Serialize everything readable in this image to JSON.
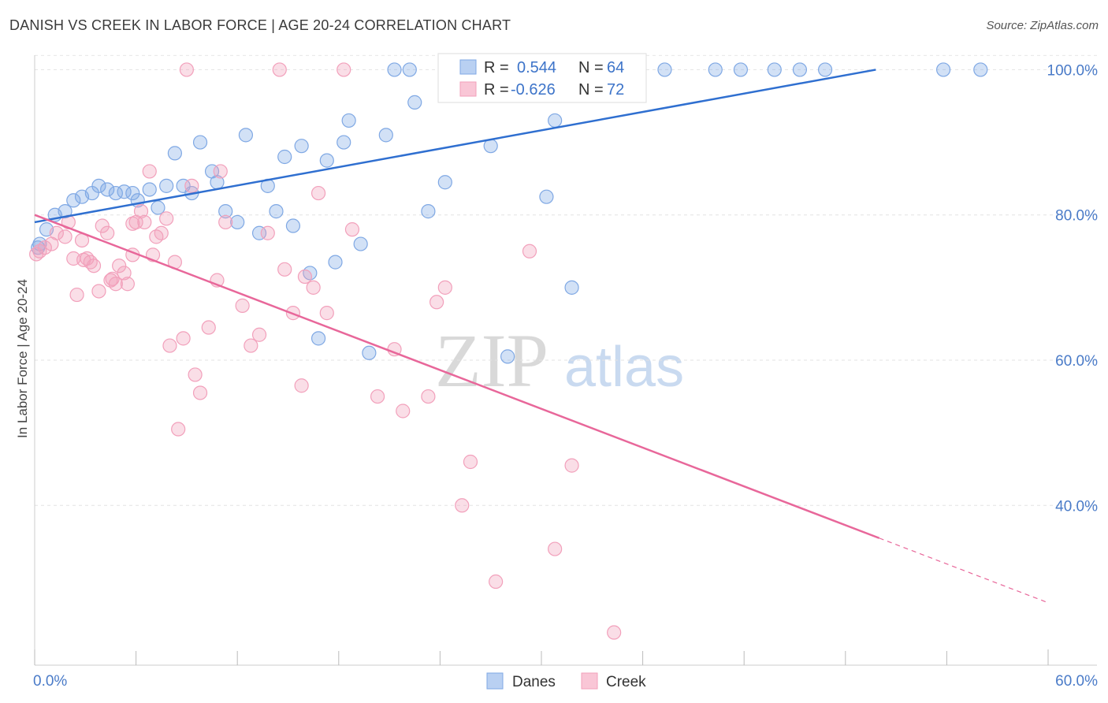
{
  "title": "DANISH VS CREEK IN LABOR FORCE | AGE 20-24 CORRELATION CHART",
  "source": "Source: ZipAtlas.com",
  "watermark": {
    "zip": "ZIP",
    "atlas": "atlas"
  },
  "colors": {
    "danes": "#7fa8e4",
    "creek": "#f2a0bb",
    "danes_line": "#2f6fd0",
    "creek_line": "#e8679a",
    "axis_text": "#4a7bc8"
  },
  "legend": {
    "r_label": "R =",
    "n_label": "N =",
    "danes": {
      "r": "0.544",
      "n": "64"
    },
    "creek": {
      "r": "-0.626",
      "n": "72"
    }
  },
  "bottom_legend": {
    "danes": "Danes",
    "creek": "Creek"
  },
  "chart_data": {
    "type": "scatter",
    "title": "DANISH VS CREEK IN LABOR FORCE | AGE 20-24 CORRELATION CHART",
    "xlabel": "",
    "ylabel": "In Labor Force | Age 20-24",
    "xlim": [
      0,
      60
    ],
    "ylim": [
      18,
      102
    ],
    "x_tick_labels": [
      "0.0%",
      "60.0%"
    ],
    "y_ticks": [
      40,
      60,
      80,
      100
    ],
    "y_tick_labels": [
      "40.0%",
      "60.0%",
      "80.0%",
      "100.0%"
    ],
    "grid": true,
    "legend_position": "top-center",
    "series": [
      {
        "name": "Danes",
        "color": "#7fa8e4",
        "points": [
          [
            0.2,
            75.5
          ],
          [
            0.7,
            78
          ],
          [
            1.2,
            80
          ],
          [
            1.8,
            80.5
          ],
          [
            2.3,
            82
          ],
          [
            2.8,
            82.5
          ],
          [
            3.4,
            83
          ],
          [
            3.8,
            84
          ],
          [
            4.3,
            83.5
          ],
          [
            4.8,
            83
          ],
          [
            5.3,
            83.2
          ],
          [
            5.8,
            83
          ],
          [
            6.1,
            82
          ],
          [
            6.8,
            83.5
          ],
          [
            7.3,
            81
          ],
          [
            7.8,
            84
          ],
          [
            8.3,
            88.5
          ],
          [
            8.8,
            84
          ],
          [
            9.3,
            83
          ],
          [
            9.8,
            90
          ],
          [
            10.5,
            86
          ],
          [
            10.8,
            84.5
          ],
          [
            11.3,
            80.5
          ],
          [
            12.0,
            79
          ],
          [
            12.5,
            91
          ],
          [
            13.3,
            77.5
          ],
          [
            13.8,
            84
          ],
          [
            14.3,
            80.5
          ],
          [
            14.8,
            88
          ],
          [
            15.3,
            78.5
          ],
          [
            15.8,
            89.5
          ],
          [
            16.3,
            72
          ],
          [
            16.8,
            63
          ],
          [
            17.3,
            87.5
          ],
          [
            17.8,
            73.5
          ],
          [
            18.3,
            90
          ],
          [
            18.6,
            93
          ],
          [
            19.3,
            76
          ],
          [
            19.8,
            61
          ],
          [
            20.8,
            91
          ],
          [
            21.3,
            100
          ],
          [
            22.2,
            100
          ],
          [
            22.5,
            95.5
          ],
          [
            23.3,
            80.5
          ],
          [
            24.3,
            84.5
          ],
          [
            25.5,
            100
          ],
          [
            27.0,
            89.5
          ],
          [
            28.0,
            60.5
          ],
          [
            28.3,
            100
          ],
          [
            29.3,
            100
          ],
          [
            30.3,
            82.5
          ],
          [
            30.8,
            93
          ],
          [
            31.8,
            70
          ],
          [
            33.3,
            100
          ],
          [
            35.3,
            100
          ],
          [
            37.3,
            100
          ],
          [
            40.3,
            100
          ],
          [
            41.8,
            100
          ],
          [
            43.8,
            100
          ],
          [
            45.3,
            100
          ],
          [
            46.8,
            100
          ],
          [
            53.8,
            100
          ],
          [
            56.0,
            100
          ],
          [
            0.3,
            76
          ]
        ]
      },
      {
        "name": "Creek",
        "color": "#f2a0bb",
        "points": [
          [
            0.3,
            75
          ],
          [
            0.6,
            75.5
          ],
          [
            1.0,
            76
          ],
          [
            1.3,
            77.5
          ],
          [
            1.8,
            77
          ],
          [
            2.0,
            79
          ],
          [
            2.3,
            74
          ],
          [
            2.5,
            69
          ],
          [
            2.8,
            76.5
          ],
          [
            3.1,
            74
          ],
          [
            3.3,
            73.5
          ],
          [
            3.5,
            73
          ],
          [
            3.8,
            69.5
          ],
          [
            4.0,
            78.5
          ],
          [
            4.3,
            77.5
          ],
          [
            4.5,
            71
          ],
          [
            4.8,
            70.5
          ],
          [
            5.0,
            73
          ],
          [
            5.3,
            72
          ],
          [
            5.5,
            70.5
          ],
          [
            5.8,
            74.5
          ],
          [
            6.0,
            79
          ],
          [
            6.3,
            80.5
          ],
          [
            6.5,
            79
          ],
          [
            6.8,
            86
          ],
          [
            7.0,
            74.5
          ],
          [
            7.2,
            77
          ],
          [
            7.5,
            77.5
          ],
          [
            7.8,
            79.5
          ],
          [
            8.0,
            62
          ],
          [
            8.3,
            73.5
          ],
          [
            8.5,
            50.5
          ],
          [
            8.8,
            63
          ],
          [
            9.0,
            100
          ],
          [
            9.3,
            84
          ],
          [
            9.5,
            58
          ],
          [
            9.8,
            55.5
          ],
          [
            10.3,
            64.5
          ],
          [
            10.8,
            71
          ],
          [
            11.0,
            86
          ],
          [
            11.3,
            79
          ],
          [
            12.3,
            67.5
          ],
          [
            12.8,
            62
          ],
          [
            13.3,
            63.5
          ],
          [
            13.8,
            77.5
          ],
          [
            14.5,
            100
          ],
          [
            14.8,
            72.5
          ],
          [
            15.3,
            66.5
          ],
          [
            15.8,
            56.5
          ],
          [
            16.0,
            71.5
          ],
          [
            16.5,
            70
          ],
          [
            16.8,
            83
          ],
          [
            17.3,
            66.5
          ],
          [
            18.3,
            100
          ],
          [
            18.8,
            78
          ],
          [
            20.3,
            55
          ],
          [
            21.3,
            61.5
          ],
          [
            21.8,
            53
          ],
          [
            23.3,
            55
          ],
          [
            23.8,
            68
          ],
          [
            24.3,
            70
          ],
          [
            25.3,
            40
          ],
          [
            25.8,
            46
          ],
          [
            27.3,
            29.5
          ],
          [
            29.3,
            75
          ],
          [
            30.8,
            34
          ],
          [
            31.8,
            45.5
          ],
          [
            34.3,
            22.5
          ],
          [
            5.8,
            78.8
          ],
          [
            4.6,
            71.2
          ],
          [
            2.9,
            73.8
          ],
          [
            0.1,
            74.6
          ]
        ]
      }
    ],
    "trend_lines": [
      {
        "name": "Danes",
        "x": [
          0,
          49.8
        ],
        "y": [
          79,
          100
        ],
        "style": "solid"
      },
      {
        "name": "Creek",
        "x": [
          0,
          50
        ],
        "y": [
          80,
          35.5
        ],
        "style": "solid"
      },
      {
        "name": "Creek",
        "x": [
          50,
          60
        ],
        "y": [
          35.5,
          26.6
        ],
        "style": "dashed"
      }
    ]
  }
}
